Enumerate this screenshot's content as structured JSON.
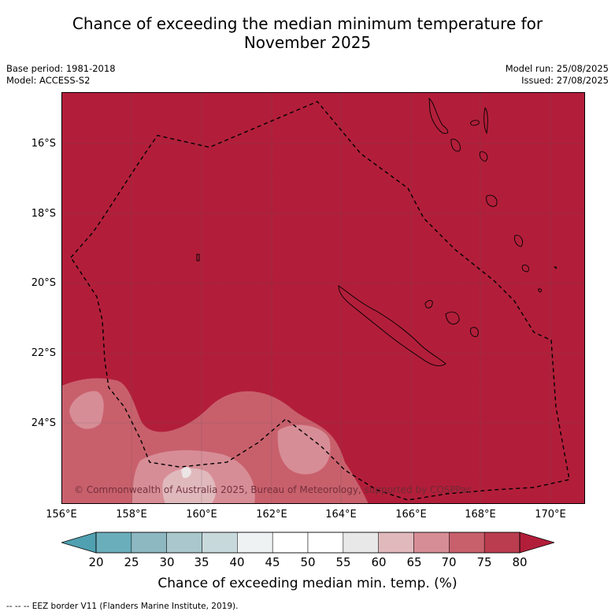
{
  "title": "Chance of exceeding the median minimum temperature for November 2025",
  "title_lines": [
    "Chance of exceeding the median minimum temperature for",
    "November 2025"
  ],
  "meta_left": {
    "base_period": "Base period: 1981-2018",
    "model": "Model: ACCESS-S2"
  },
  "meta_right": {
    "model_run": "Model run: 25/08/2025",
    "issued": "Issued: 27/08/2025"
  },
  "map": {
    "lon_range": [
      156,
      171
    ],
    "lat_range": [
      -26.0,
      -14.8
    ],
    "y_ticks": [
      "16°S",
      "18°S",
      "20°S",
      "22°S",
      "24°S"
    ],
    "x_ticks": [
      "156°E",
      "158°E",
      "160°E",
      "162°E",
      "164°E",
      "166°E",
      "168°E",
      "170°E"
    ],
    "background_color": "#b21e3a",
    "copyright": "© Commonwealth of Australia 2025, Bureau of Meteorology, supported by COSPPac"
  },
  "colorbar": {
    "labels": [
      "20",
      "25",
      "30",
      "35",
      "40",
      "45",
      "50",
      "55",
      "60",
      "65",
      "70",
      "75",
      "80"
    ],
    "colors": [
      "#4fa0b0",
      "#6aaebc",
      "#8db7c1",
      "#a9c7cc",
      "#c8d9dc",
      "#eef2f3",
      "#ffffff",
      "#ffffff",
      "#e8e8e8",
      "#e0b9bd",
      "#d78d96",
      "#c8606c",
      "#ba3d4f",
      "#b21e3a"
    ],
    "title": "Chance of exceeding median min. temp. (%)"
  },
  "legend": {
    "eez": "--  --  -- EEZ border V11 (Flanders Marine Institute, 2019)."
  }
}
